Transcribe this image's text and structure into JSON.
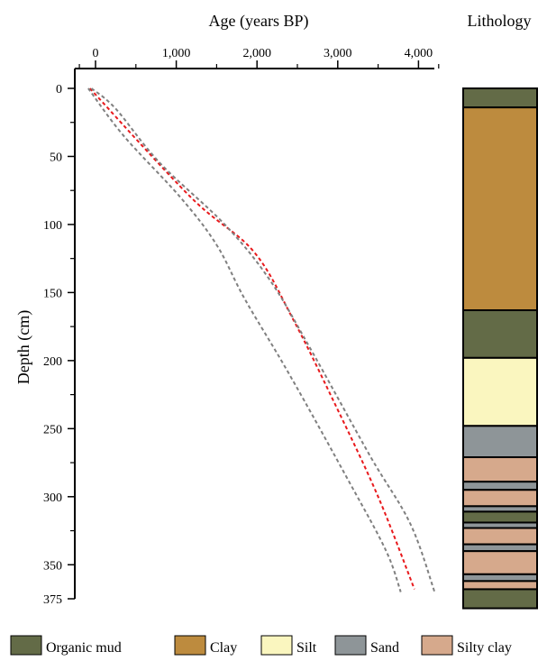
{
  "chart_data": {
    "type": "line",
    "title": "",
    "xlabel": "Age (years BP)",
    "ylabel": "Depth (cm)",
    "x_axis_position": "top",
    "y_inverted": true,
    "xlim": [
      -100,
      4200
    ],
    "ylim": [
      0,
      375
    ],
    "x_ticks": [
      {
        "value": 0,
        "label": "0"
      },
      {
        "value": 1000,
        "label": "1,000"
      },
      {
        "value": 2000,
        "label": "2,000"
      },
      {
        "value": 3000,
        "label": "3,000"
      },
      {
        "value": 4000,
        "label": "4,000"
      }
    ],
    "y_ticks": [
      {
        "value": 0,
        "label": "0"
      },
      {
        "value": 50,
        "label": "50"
      },
      {
        "value": 100,
        "label": "100"
      },
      {
        "value": 150,
        "label": "150"
      },
      {
        "value": 200,
        "label": "200"
      },
      {
        "value": 250,
        "label": "250"
      },
      {
        "value": 300,
        "label": "300"
      },
      {
        "value": 350,
        "label": "350"
      },
      {
        "value": 375,
        "label": "375"
      }
    ],
    "grid": false,
    "series": [
      {
        "style": "dashed",
        "color": "#e8191c",
        "points": [
          [
            -70,
            0
          ],
          [
            1180,
            80
          ],
          [
            1960,
            120
          ],
          [
            2450,
            170
          ],
          [
            2950,
            230
          ],
          [
            3500,
            300
          ],
          [
            3950,
            368
          ]
        ]
      },
      {
        "style": "dashed",
        "color": "#808080",
        "points": [
          [
            -50,
            0
          ],
          [
            250,
            15
          ],
          [
            800,
            55
          ],
          [
            1600,
            100
          ],
          [
            2150,
            140
          ],
          [
            2650,
            190
          ],
          [
            3400,
            270
          ],
          [
            3900,
            320
          ],
          [
            4200,
            370
          ]
        ]
      },
      {
        "style": "dashed",
        "color": "#808080",
        "points": [
          [
            -90,
            0
          ],
          [
            350,
            35
          ],
          [
            1050,
            80
          ],
          [
            1500,
            115
          ],
          [
            1850,
            155
          ],
          [
            2400,
            210
          ],
          [
            3150,
            290
          ],
          [
            3600,
            340
          ],
          [
            3780,
            370
          ]
        ]
      }
    ],
    "lithology": {
      "title": "Lithology",
      "layers": [
        {
          "type": "organic_mud",
          "top": 0,
          "bottom": 14
        },
        {
          "type": "clay",
          "top": 14,
          "bottom": 163
        },
        {
          "type": "organic_mud",
          "top": 163,
          "bottom": 198
        },
        {
          "type": "silt",
          "top": 198,
          "bottom": 248
        },
        {
          "type": "sand",
          "top": 248,
          "bottom": 271
        },
        {
          "type": "silty_clay",
          "top": 271,
          "bottom": 289
        },
        {
          "type": "sand",
          "top": 289,
          "bottom": 295
        },
        {
          "type": "silty_clay",
          "top": 295,
          "bottom": 307
        },
        {
          "type": "sand",
          "top": 307,
          "bottom": 311
        },
        {
          "type": "organic_mud",
          "top": 311,
          "bottom": 319
        },
        {
          "type": "sand",
          "top": 319,
          "bottom": 323
        },
        {
          "type": "silty_clay",
          "top": 323,
          "bottom": 335
        },
        {
          "type": "sand",
          "top": 335,
          "bottom": 340
        },
        {
          "type": "silty_clay",
          "top": 340,
          "bottom": 357
        },
        {
          "type": "sand",
          "top": 357,
          "bottom": 362
        },
        {
          "type": "silty_clay",
          "top": 362,
          "bottom": 368
        },
        {
          "type": "organic_mud",
          "top": 368,
          "bottom": 382
        }
      ]
    },
    "legend": {
      "placement": "bottom",
      "entries": [
        {
          "type": "organic_mud",
          "label": "Organic mud",
          "color": "#636b47"
        },
        {
          "type": "clay",
          "label": "Clay",
          "color": "#bd8b3e"
        },
        {
          "type": "silt",
          "label": "Silt",
          "color": "#faf6bf"
        },
        {
          "type": "sand",
          "label": "Sand",
          "color": "#8e9598"
        },
        {
          "type": "silty_clay",
          "label": "Silty clay",
          "color": "#d6a98c"
        }
      ]
    }
  }
}
